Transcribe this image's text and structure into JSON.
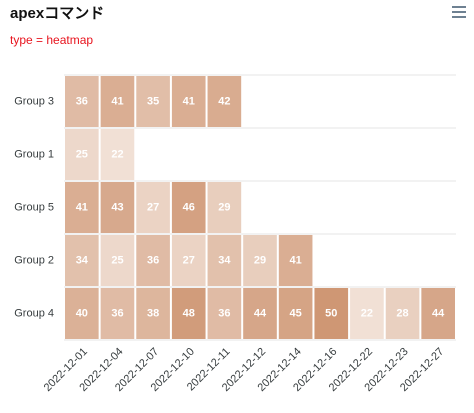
{
  "chart_data": {
    "type": "heatmap",
    "title": "apexコマンド",
    "subtitle": "type = heatmap",
    "color": "#cf9774",
    "categories": [
      "2022-12-01",
      "2022-12-04",
      "2022-12-07",
      "2022-12-10",
      "2022-12-11",
      "2022-12-12",
      "2022-12-14",
      "2022-12-16",
      "2022-12-22",
      "2022-12-23",
      "2022-12-27"
    ],
    "series": [
      {
        "name": "Group 3",
        "values": [
          36,
          41,
          35,
          41,
          42,
          null,
          null,
          null,
          null,
          null,
          null
        ]
      },
      {
        "name": "Group 1",
        "values": [
          25,
          22,
          null,
          null,
          null,
          null,
          null,
          null,
          null,
          null,
          null
        ]
      },
      {
        "name": "Group 5",
        "values": [
          41,
          43,
          27,
          46,
          29,
          null,
          null,
          null,
          null,
          null,
          null
        ]
      },
      {
        "name": "Group 2",
        "values": [
          34,
          25,
          36,
          27,
          34,
          29,
          41,
          null,
          null,
          null,
          null
        ]
      },
      {
        "name": "Group 4",
        "values": [
          40,
          36,
          38,
          48,
          36,
          44,
          45,
          50,
          22,
          28,
          44
        ]
      }
    ]
  }
}
